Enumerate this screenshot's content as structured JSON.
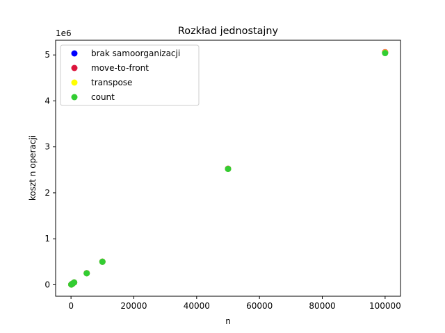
{
  "chart_data": {
    "type": "scatter",
    "title": "Rozkład jednostajny",
    "xlabel": "n",
    "ylabel": "koszt n operacji",
    "y_offset_label": "1e6",
    "y_scale": 1000000,
    "xlim": [
      -4900,
      104900
    ],
    "ylim": [
      -250000,
      5320000
    ],
    "xticks": [
      0,
      20000,
      40000,
      60000,
      80000,
      100000
    ],
    "xtick_labels": [
      "0",
      "20000",
      "40000",
      "60000",
      "80000",
      "100000"
    ],
    "yticks": [
      0,
      1000000,
      2000000,
      3000000,
      4000000,
      5000000
    ],
    "ytick_labels": [
      "0",
      "1",
      "2",
      "3",
      "4",
      "5"
    ],
    "grid": false,
    "legend_position": "upper-left",
    "series": [
      {
        "name": "brak samoorganizacji",
        "color": "#0000ff",
        "x": [
          100,
          200,
          500,
          1000,
          5000,
          10000,
          50000,
          100000
        ],
        "y": [
          5000,
          10000,
          25000,
          50000,
          250000,
          500000,
          2520000,
          5050000
        ]
      },
      {
        "name": "move-to-front",
        "color": "#dc143c",
        "x": [
          100,
          200,
          500,
          1000,
          5000,
          10000,
          50000,
          100000
        ],
        "y": [
          5000,
          10000,
          25000,
          50000,
          252000,
          503000,
          2525000,
          5060000
        ]
      },
      {
        "name": "transpose",
        "color": "#ffff00",
        "x": [
          100,
          200,
          500,
          1000,
          5000,
          10000,
          50000,
          100000
        ],
        "y": [
          5000,
          10000,
          25000,
          50000,
          250000,
          500000,
          2520000,
          5050000
        ]
      },
      {
        "name": "count",
        "color": "#32cd32",
        "x": [
          100,
          200,
          500,
          1000,
          5000,
          10000,
          50000,
          100000
        ],
        "y": [
          5000,
          10000,
          25000,
          50000,
          250000,
          500000,
          2520000,
          5040000
        ]
      }
    ]
  }
}
